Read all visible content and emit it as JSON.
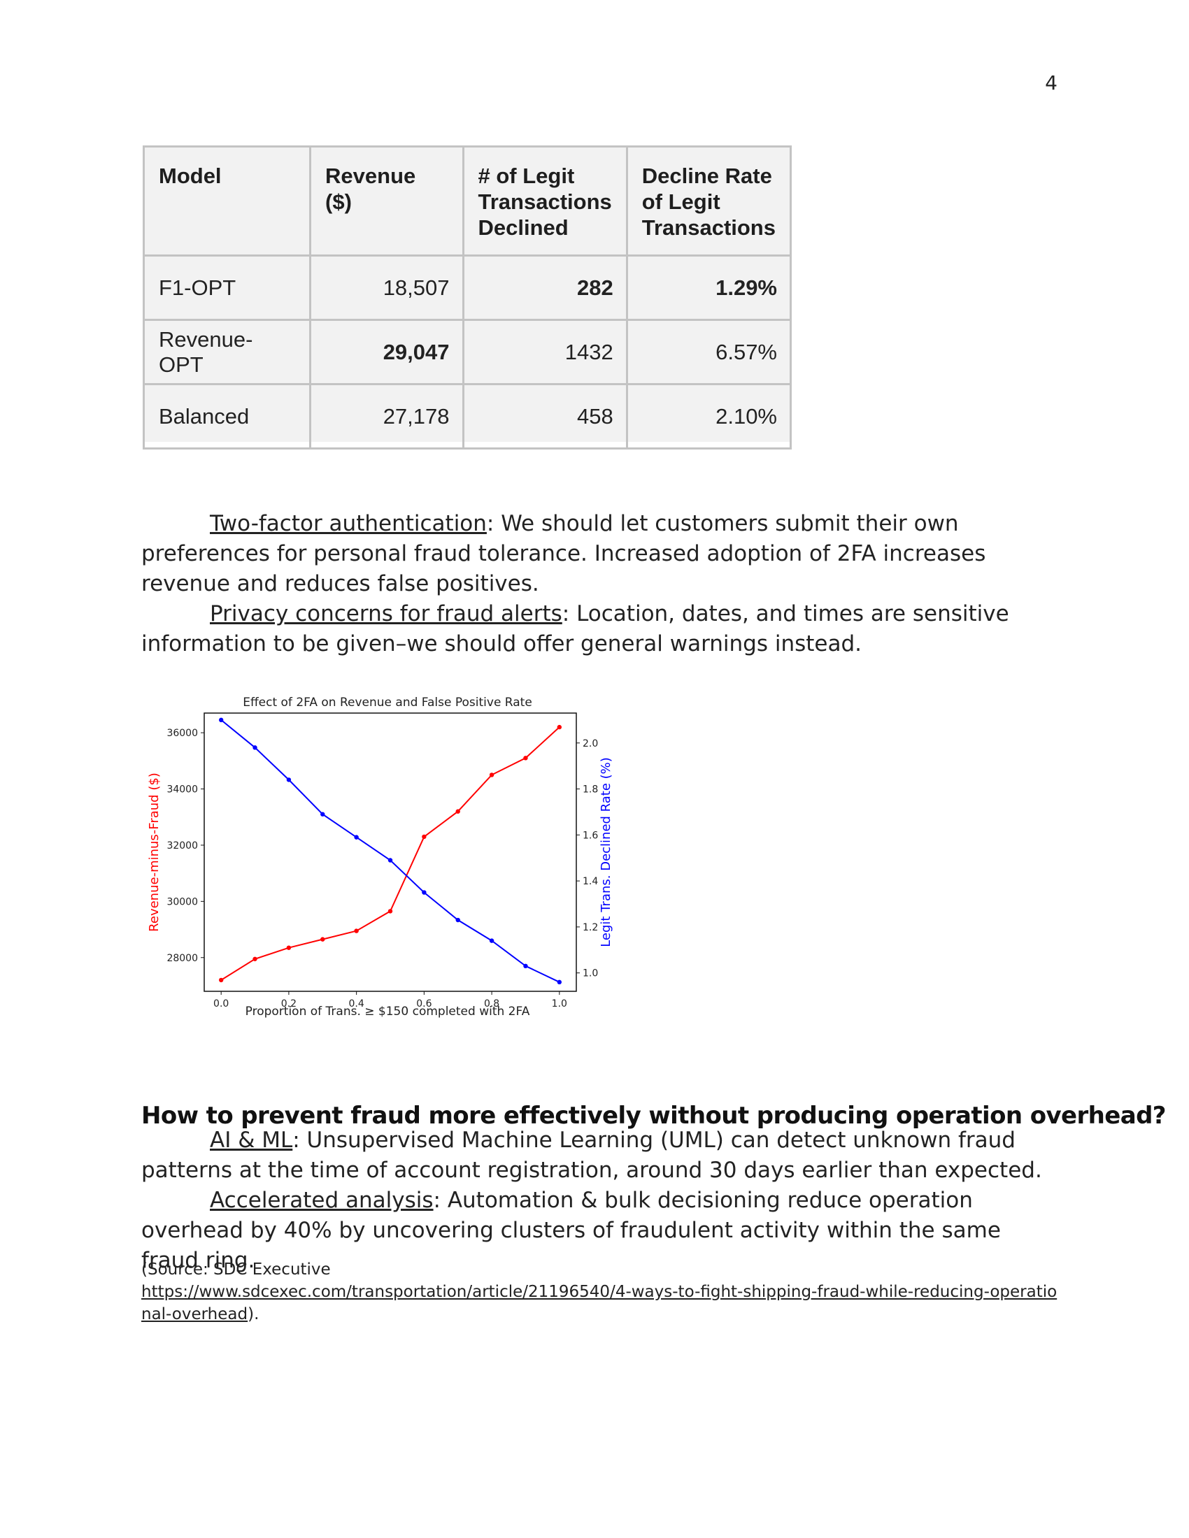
{
  "page_number": "4",
  "table": {
    "headers": [
      "Model",
      "Revenue ($)",
      "# of Legit Transactions Declined",
      "Decline Rate of Legit Transactions"
    ],
    "rows": [
      [
        "F1-OPT",
        "18,507",
        "282",
        "1.29%"
      ],
      [
        "Revenue-OPT",
        "29,047",
        "1432",
        "6.57%"
      ],
      [
        "Balanced",
        "27,178",
        "458",
        "2.10%"
      ]
    ]
  },
  "paragraphs": {
    "two_factor_label": "Two-factor authentication",
    "two_factor_text": ": We should let customers submit their own preferences for personal fraud tolerance. Increased adoption of 2FA increases revenue and reduces false positives.",
    "privacy_label": "Privacy concerns for fraud alerts",
    "privacy_text": ": Location, dates, and times are sensitive information to be given–we should offer general warnings instead."
  },
  "chart_data": {
    "type": "line",
    "title": "Effect of 2FA on Revenue and False Positive Rate",
    "xlabel": "Proportion of Trans. ≥ $150 completed with 2FA",
    "ylabel_left": "Revenue-minus-Fraud ($)",
    "ylabel_right": "Legit Trans. Declined Rate (%)",
    "x": [
      0.0,
      0.1,
      0.2,
      0.3,
      0.4,
      0.5,
      0.6,
      0.7,
      0.8,
      0.9,
      1.0
    ],
    "x_ticks": [
      "0.0",
      "0.2",
      "0.4",
      "0.6",
      "0.8",
      "1.0"
    ],
    "y_left_ticks": [
      "28000",
      "30000",
      "32000",
      "34000",
      "36000"
    ],
    "y_right_ticks": [
      "1.0",
      "1.2",
      "1.4",
      "1.6",
      "1.8",
      "2.0"
    ],
    "ylim_left": [
      26800,
      36700
    ],
    "ylim_right": [
      0.92,
      2.13
    ],
    "series": [
      {
        "axis": "left",
        "color": "#ff0000",
        "values": [
          27200,
          27950,
          28350,
          28650,
          28950,
          29650,
          32300,
          33200,
          34500,
          35100,
          36200
        ]
      },
      {
        "axis": "right",
        "color": "#0000ff",
        "values": [
          2.1,
          1.98,
          1.84,
          1.69,
          1.59,
          1.49,
          1.35,
          1.23,
          1.14,
          1.03,
          0.96
        ]
      }
    ],
    "grid": false
  },
  "section": {
    "heading": "How to prevent fraud more effectively without producing operation overhead?",
    "ai_label": "AI & ML",
    "ai_text": ": Unsupervised Machine Learning (UML) can detect unknown fraud patterns at the time of account registration, around 30 days earlier than expected.",
    "accel_label": "Accelerated analysis",
    "accel_text": ": Automation & bulk decisioning reduce operation overhead by 40% by uncovering clusters of fraudulent activity within the same fraud ring.",
    "source_prefix": "(Source: SDC Executive",
    "source_url": "https://www.sdcexec.com/transportation/article/21196540/4-ways-to-fight-shipping-fraud-while-reducing-operational-overhead",
    "source_suffix": ")."
  }
}
